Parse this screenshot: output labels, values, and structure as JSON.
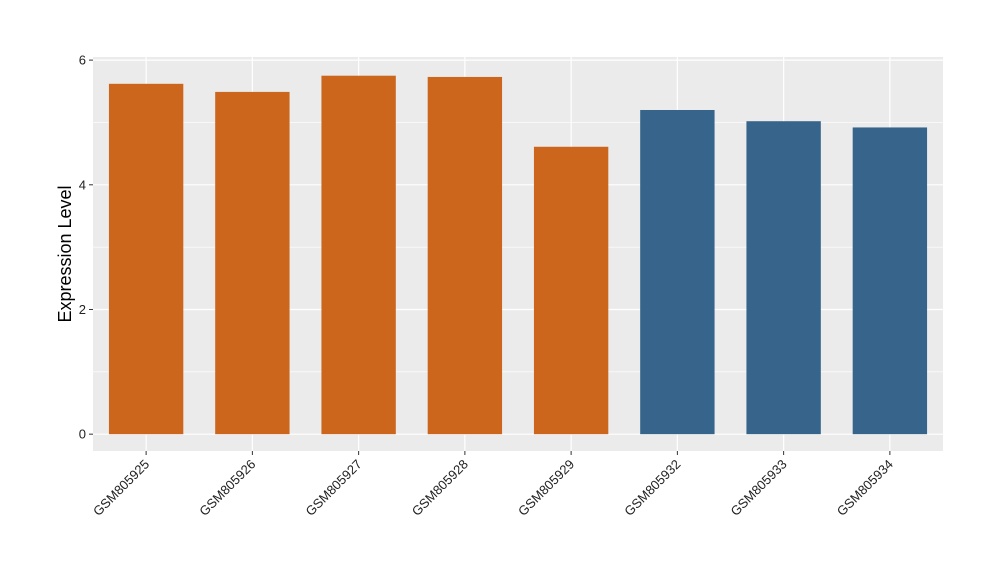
{
  "chart_data": {
    "type": "bar",
    "title": "",
    "xlabel": "",
    "ylabel": "Expression Level",
    "categories": [
      "GSM805925",
      "GSM805926",
      "GSM805927",
      "GSM805928",
      "GSM805929",
      "GSM805932",
      "GSM805933",
      "GSM805934"
    ],
    "values": [
      5.62,
      5.49,
      5.75,
      5.73,
      4.61,
      5.2,
      5.02,
      4.92
    ],
    "group_colors": [
      "#CD661D",
      "#CD661D",
      "#CD661D",
      "#CD661D",
      "#CD661D",
      "#36648B",
      "#36648B",
      "#36648B"
    ],
    "ylim": [
      -0.27,
      6.05
    ],
    "yticks": [
      0,
      2,
      4,
      6
    ],
    "grid": true,
    "legend": "none",
    "panel_background": "#EBEBEB",
    "gridline_color": "#FFFFFF"
  }
}
